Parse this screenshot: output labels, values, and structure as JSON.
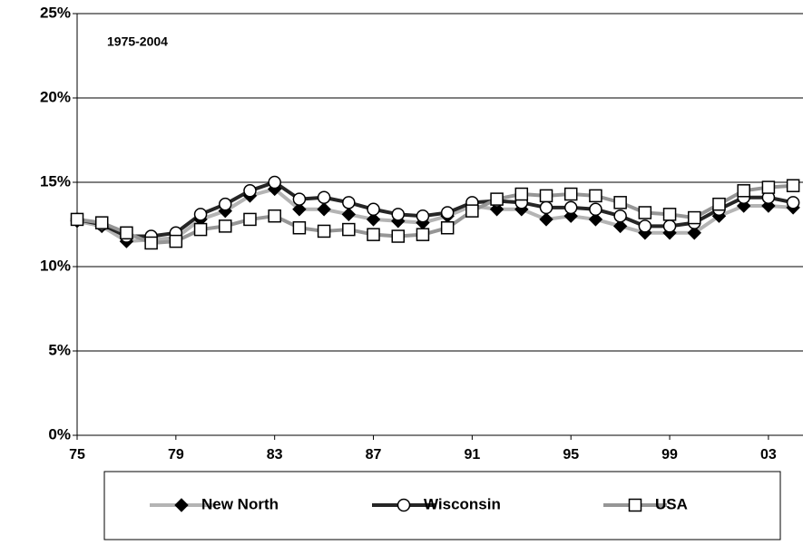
{
  "chart_data": {
    "type": "line",
    "annotation": "1975-2004",
    "x": [
      1975,
      1976,
      1977,
      1978,
      1979,
      1980,
      1981,
      1982,
      1983,
      1984,
      1985,
      1986,
      1987,
      1988,
      1989,
      1990,
      1991,
      1992,
      1993,
      1994,
      1995,
      1996,
      1997,
      1998,
      1999,
      2000,
      2001,
      2002,
      2003,
      2004
    ],
    "series": [
      {
        "name": "New North",
        "color": "#b4b4b4",
        "marker": "diamond",
        "values": [
          12.7,
          12.4,
          11.5,
          11.6,
          11.7,
          12.8,
          13.3,
          14.2,
          14.6,
          13.4,
          13.4,
          13.1,
          12.8,
          12.7,
          12.6,
          13.0,
          13.6,
          13.4,
          13.4,
          12.8,
          13.0,
          12.8,
          12.4,
          12.0,
          12.0,
          12.0,
          13.0,
          13.6,
          13.6,
          13.5
        ]
      },
      {
        "name": "Wisconsin",
        "color": "#262626",
        "marker": "circle",
        "values": [
          12.8,
          12.5,
          11.8,
          11.8,
          12.0,
          13.1,
          13.7,
          14.5,
          15.0,
          14.0,
          14.1,
          13.8,
          13.4,
          13.1,
          13.0,
          13.2,
          13.8,
          13.9,
          13.8,
          13.5,
          13.5,
          13.4,
          13.0,
          12.4,
          12.4,
          12.6,
          13.4,
          14.1,
          14.1,
          13.8
        ]
      },
      {
        "name": "USA",
        "color": "#969696",
        "marker": "square",
        "values": [
          12.8,
          12.6,
          12.0,
          11.4,
          11.5,
          12.2,
          12.4,
          12.8,
          13.0,
          12.3,
          12.1,
          12.2,
          11.9,
          11.8,
          11.9,
          12.3,
          13.3,
          14.0,
          14.3,
          14.2,
          14.3,
          14.2,
          13.8,
          13.2,
          13.1,
          12.9,
          13.7,
          14.5,
          14.7,
          14.8
        ]
      }
    ],
    "xlim": [
      1975,
      2004.4
    ],
    "xticks": [
      {
        "value": 1975,
        "label": "75"
      },
      {
        "value": 1979,
        "label": "79"
      },
      {
        "value": 1983,
        "label": "83"
      },
      {
        "value": 1987,
        "label": "87"
      },
      {
        "value": 1991,
        "label": "91"
      },
      {
        "value": 1995,
        "label": "95"
      },
      {
        "value": 1999,
        "label": "99"
      },
      {
        "value": 2003,
        "label": "03"
      }
    ],
    "ylim": [
      0,
      25
    ],
    "yticks": [
      {
        "value": 0,
        "label": "0%"
      },
      {
        "value": 5,
        "label": "5%"
      },
      {
        "value": 10,
        "label": "10%"
      },
      {
        "value": 15,
        "label": "15%"
      },
      {
        "value": 20,
        "label": "20%"
      },
      {
        "value": 25,
        "label": "25%"
      }
    ],
    "grid": true
  }
}
